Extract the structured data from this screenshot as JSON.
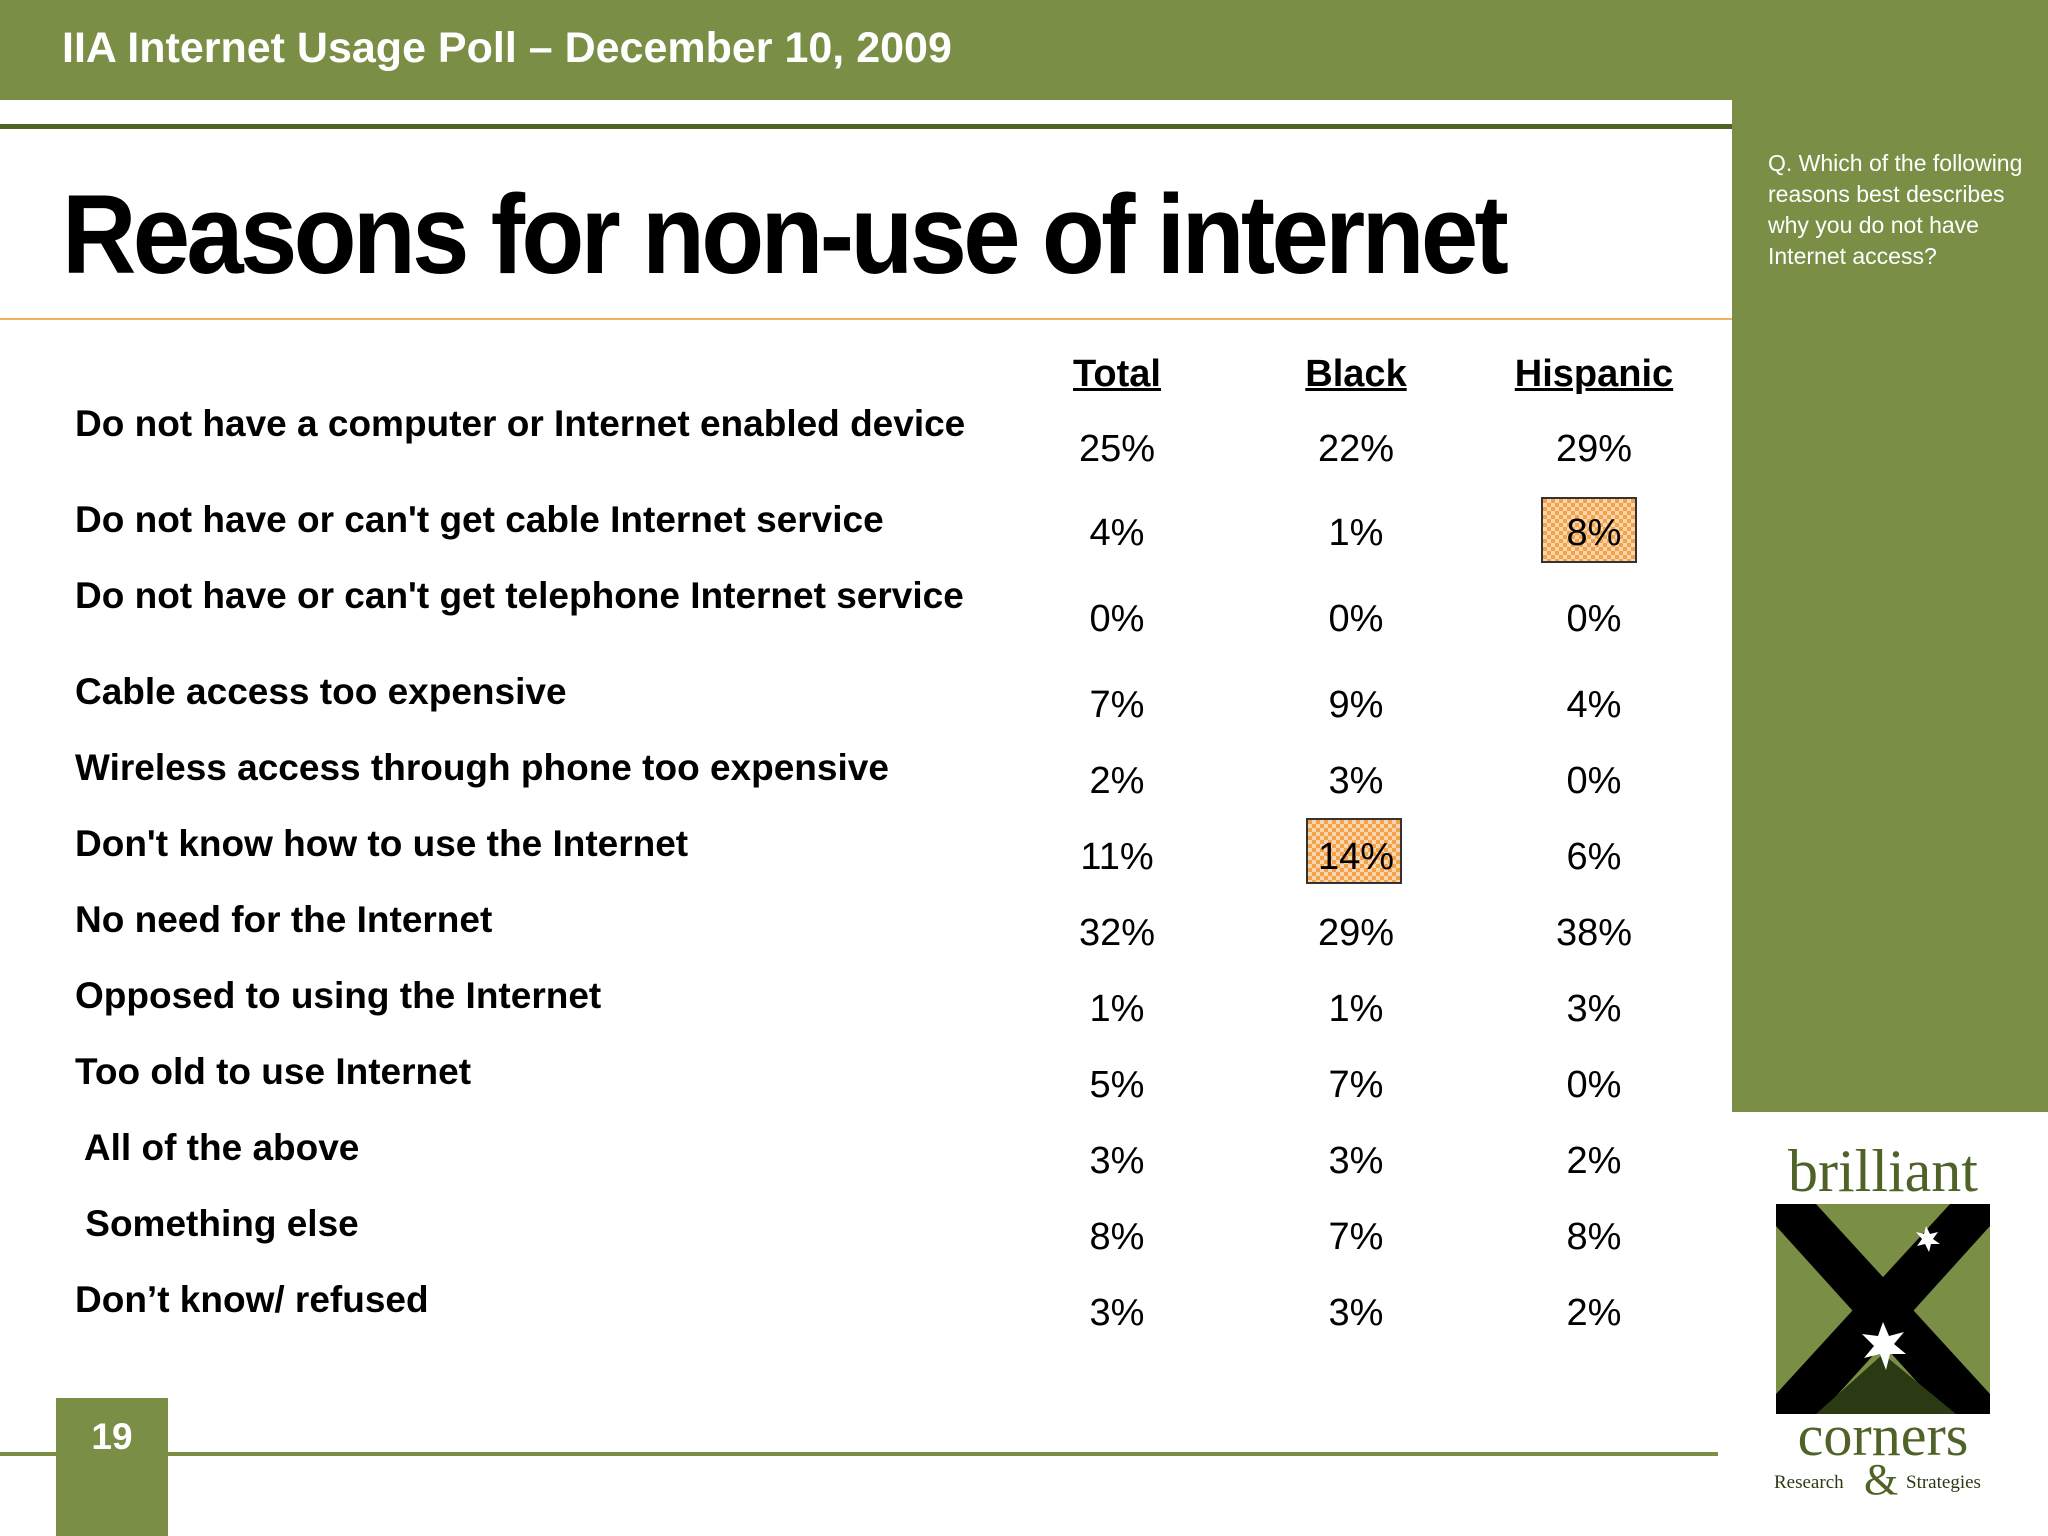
{
  "header": {
    "poll_title": "IIA Internet Usage Poll – December 10, 2009"
  },
  "slide": {
    "title": "Reasons for non-use of internet",
    "page_number": "19"
  },
  "side_panel": {
    "question": "Q. Which of the following reasons best describes why you do not have Internet access?"
  },
  "table": {
    "columns": [
      "Total",
      "Black",
      "Hispanic"
    ],
    "rows": [
      {
        "label": "Do not have a computer or Internet enabled device",
        "values": [
          "25%",
          "22%",
          "29%"
        ]
      },
      {
        "label": "Do not have or can't get cable Internet service",
        "values": [
          "4%",
          "1%",
          "8%"
        ]
      },
      {
        "label": "Do not have or can't get telephone Internet service",
        "values": [
          "0%",
          "0%",
          "0%"
        ]
      },
      {
        "label": "Cable access too expensive",
        "values": [
          "7%",
          "9%",
          "4%"
        ]
      },
      {
        "label": "Wireless access through phone too expensive",
        "values": [
          "2%",
          "3%",
          "0%"
        ]
      },
      {
        "label": "Don't know how to use the Internet",
        "values": [
          "11%",
          "14%",
          "6%"
        ]
      },
      {
        "label": "No need for the Internet",
        "values": [
          "32%",
          "29%",
          "38%"
        ]
      },
      {
        "label": "Opposed to using the Internet",
        "values": [
          "1%",
          "1%",
          "3%"
        ]
      },
      {
        "label": "Too old to use Internet",
        "values": [
          "5%",
          "7%",
          "0%"
        ]
      },
      {
        "label": " All of the above",
        "values": [
          "3%",
          "3%",
          "2%"
        ]
      },
      {
        "label": " Something else",
        "values": [
          "8%",
          "7%",
          "8%"
        ]
      },
      {
        "label": "Don’t know/ refused",
        "values": [
          "3%",
          "3%",
          "2%"
        ]
      }
    ]
  },
  "logo": {
    "top_word": "brilliant",
    "bottom_word": "corners",
    "tag_left": "Research",
    "tag_amp": "&",
    "tag_right": "Strategies"
  },
  "colors": {
    "green": "#7a8f45",
    "dark_green": "#4f6228",
    "highlight": "#f4a24a",
    "title_rule": "#f0b060"
  }
}
